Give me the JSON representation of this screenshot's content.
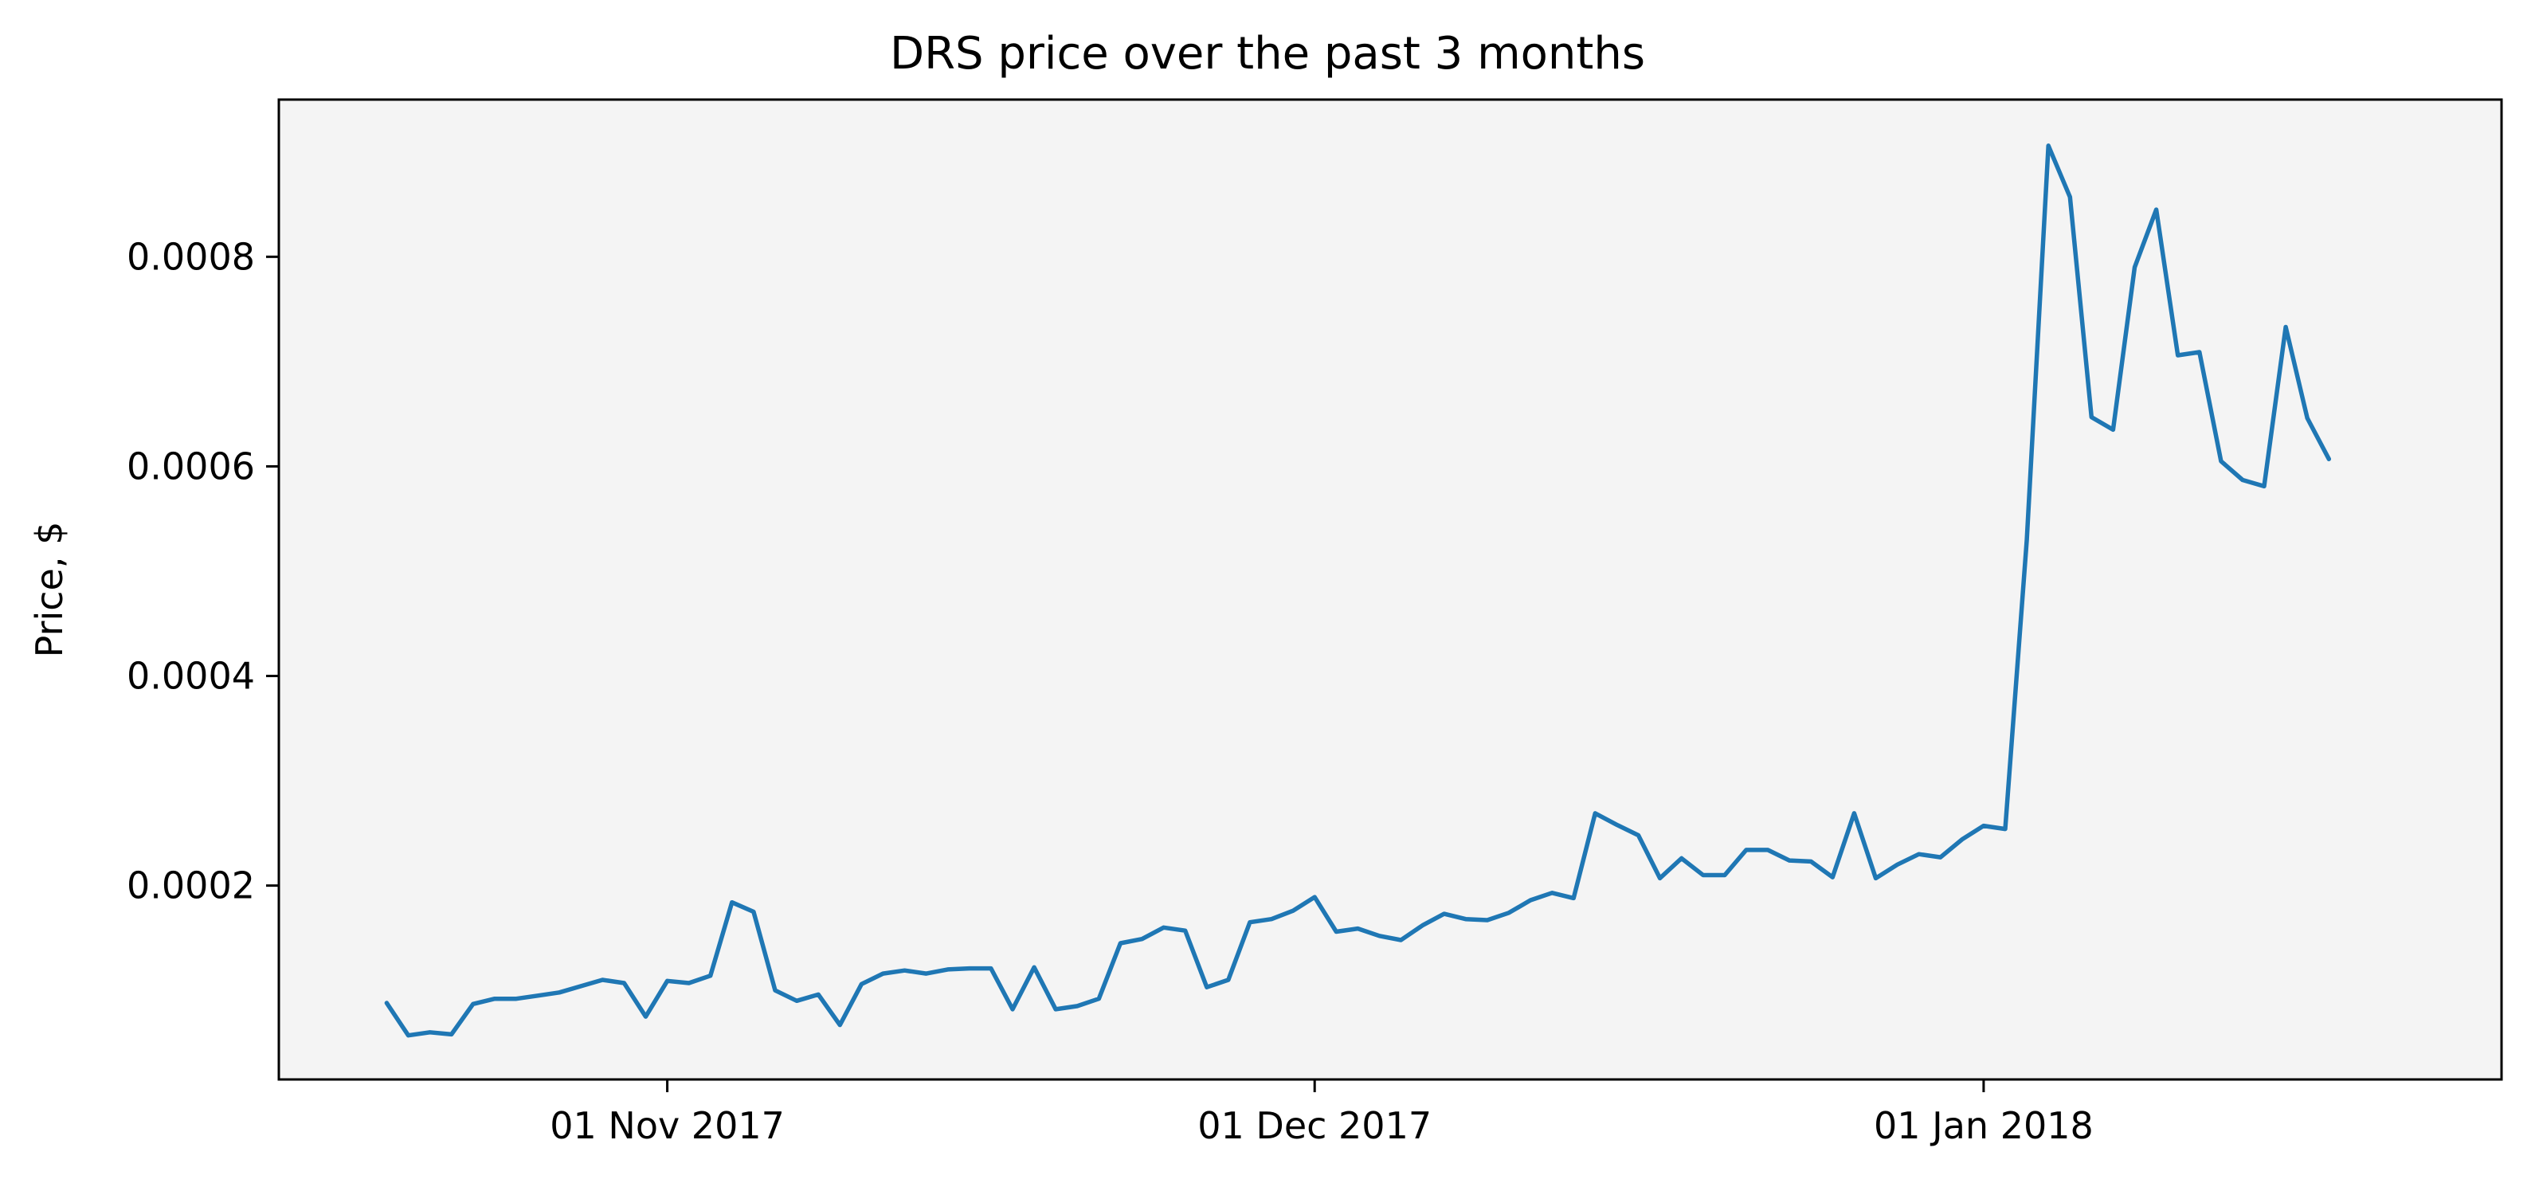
{
  "chart_data": {
    "type": "line",
    "title": "DRS price over the past 3 months",
    "xlabel": "",
    "ylabel": "Price, $",
    "grid": false,
    "legend": "none",
    "plot_background": "#f4f4f4",
    "line_color": "#1f77b4",
    "x_start": "2017-10-19",
    "x_end": "2018-01-20",
    "xlim": [
      "2017-10-14",
      "2018-01-25"
    ],
    "ylim": [
      1.5e-05,
      0.00095
    ],
    "xticks": [
      {
        "date": "2017-11-01",
        "label": "01 Nov 2017"
      },
      {
        "date": "2017-12-01",
        "label": "01 Dec 2017"
      },
      {
        "date": "2018-01-01",
        "label": "01 Jan 2018"
      }
    ],
    "yticks": [
      {
        "value": 0.0002,
        "label": "0.0002"
      },
      {
        "value": 0.0004,
        "label": "0.0004"
      },
      {
        "value": 0.0006,
        "label": "0.0006"
      },
      {
        "value": 0.0008,
        "label": "0.0008"
      }
    ],
    "series": [
      {
        "values": [
          8.8e-05,
          5.7e-05,
          6e-05,
          5.8e-05,
          8.7e-05,
          9.2e-05,
          9.2e-05,
          9.5e-05,
          9.8e-05,
          0.000104,
          0.00011,
          0.000107,
          7.5e-05,
          0.000109,
          0.000107,
          0.000114,
          0.000184,
          0.000175,
          0.0001,
          9e-05,
          9.6e-05,
          6.7e-05,
          0.000106,
          0.000116,
          0.000119,
          0.000116,
          0.00012,
          0.000121,
          0.000121,
          8.2e-05,
          0.000122,
          8.2e-05,
          8.5e-05,
          9.2e-05,
          0.000145,
          0.000149,
          0.00016,
          0.000157,
          0.000103,
          0.00011,
          0.000165,
          0.000168,
          0.000176,
          0.000189,
          0.000156,
          0.000159,
          0.000152,
          0.000148,
          0.000162,
          0.000173,
          0.000168,
          0.000167,
          0.000174,
          0.000186,
          0.000193,
          0.000188,
          0.000269,
          0.000258,
          0.000248,
          0.000207,
          0.000226,
          0.00021,
          0.00021,
          0.000234,
          0.000234,
          0.000224,
          0.000223,
          0.000208,
          0.000269,
          0.000207,
          0.00022,
          0.00023,
          0.000227,
          0.000244,
          0.000257,
          0.000254,
          0.00053,
          0.000906,
          0.000857,
          0.000647,
          0.000635,
          0.00079,
          0.000845,
          0.000706,
          0.000709,
          0.000605,
          0.000587,
          0.000581,
          0.000733,
          0.000646,
          0.000607
        ]
      }
    ]
  }
}
